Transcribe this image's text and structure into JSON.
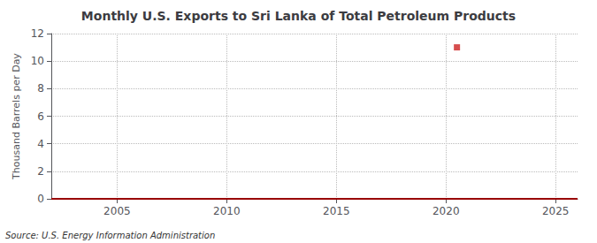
{
  "chart_data": {
    "type": "scatter",
    "title": "Monthly U.S. Exports to Sri Lanka of Total Petroleum Products",
    "ylabel": "Thousand Barrels per Day",
    "annotations": [
      "Source: U.S. Energy Information Administration"
    ],
    "xlim": [
      2002,
      2026
    ],
    "xticks": [
      2005,
      2010,
      2015,
      2020,
      2025
    ],
    "ylim": [
      0,
      12
    ],
    "yticks": [
      0,
      2,
      4,
      6,
      8,
      10,
      12
    ],
    "grid": true,
    "series": [
      {
        "type": "line",
        "color": "#990000",
        "line_style": "solid",
        "x": [
          2002,
          2026
        ],
        "values": [
          0,
          0
        ]
      },
      {
        "type": "scatter",
        "color": "#cc2222",
        "marker": "square",
        "x": [
          2020.5
        ],
        "values": [
          11.0
        ]
      }
    ]
  }
}
